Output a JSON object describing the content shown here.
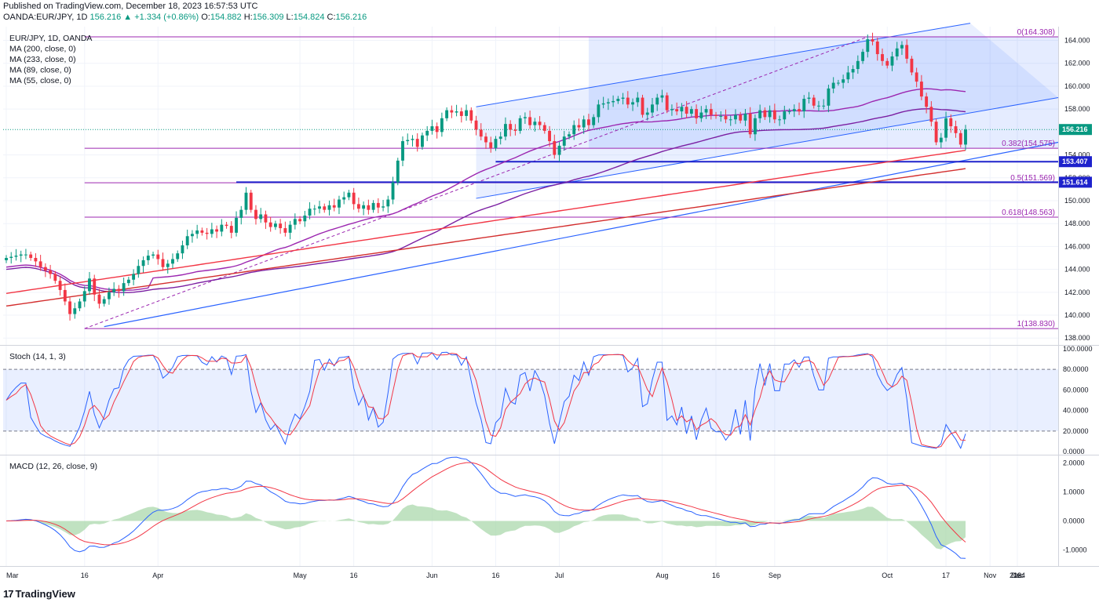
{
  "header": {
    "published": "Published on TradingView.com, December 18, 2023 16:57:53 UTC",
    "symbol": "OANDA:EUR/JPY, 1D",
    "last": "156.216",
    "change": "▲ +1.334 (+0.86%)",
    "o_label": "O:",
    "o": "154.882",
    "h_label": "H:",
    "h": "156.309",
    "l_label": "L:",
    "l": "154.824",
    "c_label": "C:",
    "c": "156.216"
  },
  "footer": {
    "brand": "TradingView",
    "brand_mark": "17"
  },
  "colors": {
    "up": "#089981",
    "down": "#f23645",
    "fib": "#9c27b0",
    "ma_red": "#f23645",
    "ma_purple": "#9c27b0",
    "channel": "#2962ff",
    "stoch_k": "#2962ff",
    "stoch_d": "#f23645",
    "macd_hist": "#a5d6a7",
    "price_tag": "#089981",
    "level_tag": "#1e22cc"
  },
  "chart_data": [
    {
      "type": "candlestick",
      "legend": [
        "EUR/JPY, 1D, OANDA",
        "MA (200, close, 0)",
        "MA (233, close, 0)",
        "MA (89, close, 0)",
        "MA (55, close, 0)"
      ],
      "x_ticks": [
        "Mar",
        "16",
        "Apr",
        "May",
        "16",
        "Jun",
        "16",
        "Jul",
        "Aug",
        "16",
        "Sep",
        "Oct",
        "17",
        "Nov",
        "16",
        "Dec",
        "2024"
      ],
      "y_ticks": [
        "164.000",
        "162.000",
        "160.000",
        "158.000",
        "154.000",
        "152.000",
        "150.000",
        "148.000",
        "146.000",
        "144.000",
        "142.000",
        "140.000",
        "138.000"
      ],
      "ylim": [
        137.4,
        165.2
      ],
      "last_price_tag": "156.216",
      "fib_levels": [
        {
          "label": "0(164.308)",
          "value": 164.308
        },
        {
          "label": "0.382(154.575)",
          "value": 154.575
        },
        {
          "label": "0.5(151.569)",
          "value": 151.569
        },
        {
          "label": "0.618(148.563)",
          "value": 148.563
        },
        {
          "label": "1(138.830)",
          "value": 138.83
        }
      ],
      "horizontal_levels": [
        {
          "label": "153.407",
          "value": 153.407
        },
        {
          "label": "151.614",
          "value": 151.614
        }
      ],
      "close_series": [
        145.0,
        145.1,
        145.2,
        145.3,
        145.3,
        145.0,
        144.7,
        144.2,
        143.9,
        143.6,
        143.0,
        142.2,
        141.2,
        140.1,
        140.6,
        141.2,
        142.1,
        143.2,
        141.8,
        141.0,
        141.4,
        142.0,
        142.3,
        142.1,
        142.8,
        143.1,
        143.6,
        144.3,
        144.8,
        145.2,
        145.3,
        144.9,
        144.2,
        144.5,
        144.9,
        145.4,
        146.1,
        146.9,
        147.1,
        147.4,
        147.2,
        147.1,
        147.5,
        147.3,
        147.9,
        147.8,
        147.2,
        148.5,
        149.2,
        150.7,
        149.2,
        148.4,
        148.8,
        148.1,
        147.7,
        148.0,
        147.6,
        147.2,
        147.9,
        148.4,
        148.2,
        148.7,
        149.3,
        149.3,
        149.5,
        149.2,
        149.6,
        149.4,
        150.1,
        150.3,
        150.7,
        149.7,
        149.3,
        149.6,
        149.2,
        149.8,
        149.4,
        149.5,
        150.1,
        151.6,
        153.5,
        155.2,
        155.3,
        155.4,
        154.7,
        155.7,
        156.1,
        156.5,
        156.0,
        157.2,
        157.9,
        157.7,
        157.8,
        157.4,
        157.9,
        157.0,
        156.2,
        155.6,
        155.1,
        154.6,
        155.4,
        155.6,
        156.7,
        156.2,
        156.1,
        157.2,
        157.3,
        156.6,
        156.9,
        156.6,
        156.1,
        155.2,
        154.0,
        154.8,
        155.6,
        155.8,
        156.6,
        156.4,
        157.1,
        156.6,
        157.3,
        158.4,
        158.5,
        158.6,
        158.7,
        158.9,
        159.0,
        158.4,
        158.6,
        159.0,
        157.5,
        157.7,
        158.4,
        159.0,
        159.2,
        157.9,
        158.0,
        157.8,
        158.2,
        157.6,
        158.0,
        157.2,
        157.7,
        158.0,
        157.5,
        157.4,
        157.4,
        157.1,
        157.1,
        157.5,
        157.0,
        157.6,
        155.8,
        157.2,
        157.9,
        157.3,
        157.9,
        157.1,
        157.1,
        157.8,
        157.8,
        158.0,
        157.8,
        158.9,
        159.0,
        158.3,
        158.3,
        158.3,
        159.8,
        160.3,
        160.3,
        160.6,
        161.2,
        161.5,
        162.2,
        163.0,
        164.1,
        163.9,
        162.8,
        162.2,
        161.8,
        162.6,
        163.3,
        163.6,
        162.4,
        161.2,
        160.4,
        159.1,
        158.2,
        156.9,
        155.1,
        155.5,
        157.2,
        156.5,
        155.9,
        154.9,
        156.216
      ]
    },
    {
      "type": "line",
      "legend": "Stoch (14, 1, 3)",
      "y_ticks": [
        "100.0000",
        "80.0000",
        "60.0000",
        "40.0000",
        "20.0000",
        "0.0000"
      ],
      "bands": [
        20,
        80
      ],
      "ylim": [
        -3,
        103
      ]
    },
    {
      "type": "line",
      "legend": "MACD (12, 26, close, 9)",
      "y_ticks": [
        "2.0000",
        "1.0000",
        "0.0000",
        "-1.0000"
      ],
      "ylim": [
        -1.55,
        2.25
      ]
    }
  ]
}
